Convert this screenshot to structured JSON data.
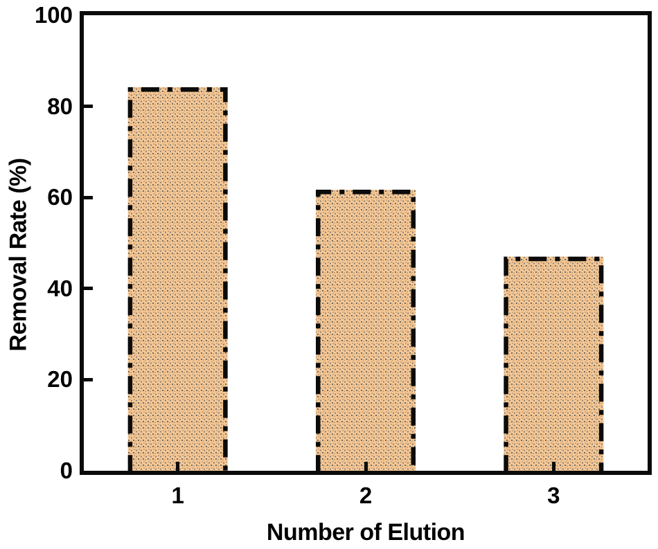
{
  "chart_data": {
    "type": "bar",
    "title": "",
    "xlabel": "Number of Elution",
    "ylabel": "Removal Rate (%)",
    "categories": [
      "1",
      "2",
      "3"
    ],
    "values": [
      84.2,
      61.7,
      47.0
    ],
    "ylim": [
      0,
      100
    ],
    "yticks": [
      0,
      20,
      40,
      60,
      80,
      100
    ],
    "grid": false,
    "legend": "none",
    "frame": "full-box-with-inward-ticks",
    "style": {
      "background": "#ffffff",
      "frame_color": "#0b0b0b",
      "bar_fill": "#F5C795",
      "bar_dot_dark": "#6E6A60",
      "bar_dot_mid": "#8A8176",
      "bar_dot_light": "#BE976B",
      "bar_border_color": "#0b0b0b",
      "bar_border_style": "dash-dot",
      "text_color": "#000000"
    }
  }
}
